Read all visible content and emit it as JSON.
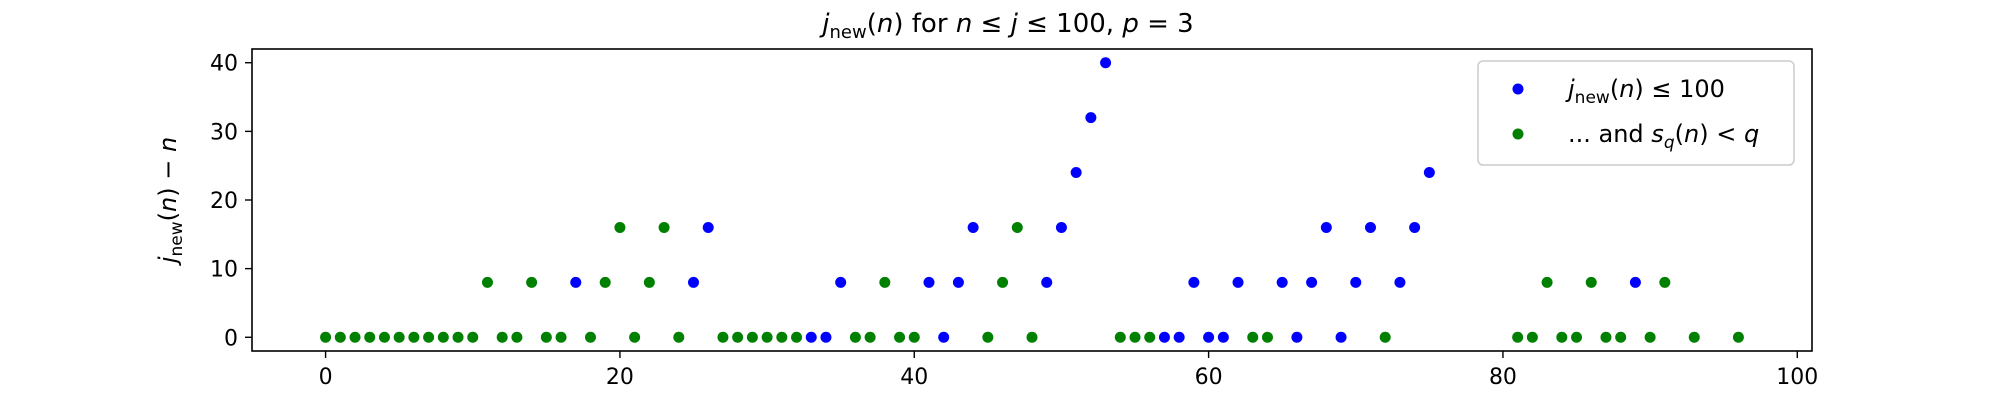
{
  "chart_data": {
    "type": "scatter",
    "title": "j_new(n) for n ≤ j ≤ 100, p = 3",
    "xlabel": "",
    "ylabel": "j_new(n) − n",
    "xlim": [
      -5,
      101
    ],
    "ylim": [
      -2,
      42
    ],
    "xticks": [
      "0",
      "20",
      "40",
      "60",
      "80",
      "100"
    ],
    "yticks": [
      "0",
      "10",
      "20",
      "30",
      "40"
    ],
    "grid": false,
    "legend_position": "top-right",
    "series": [
      {
        "name": "j_new(n) ≤ 100",
        "color": "#0000ff",
        "points": [
          [
            17,
            8
          ],
          [
            25,
            8
          ],
          [
            26,
            16
          ],
          [
            33,
            0
          ],
          [
            34,
            0
          ],
          [
            35,
            8
          ],
          [
            41,
            8
          ],
          [
            42,
            0
          ],
          [
            43,
            8
          ],
          [
            44,
            16
          ],
          [
            49,
            8
          ],
          [
            50,
            16
          ],
          [
            51,
            24
          ],
          [
            52,
            32
          ],
          [
            53,
            40
          ],
          [
            57,
            0
          ],
          [
            58,
            0
          ],
          [
            59,
            8
          ],
          [
            60,
            0
          ],
          [
            61,
            0
          ],
          [
            62,
            8
          ],
          [
            65,
            8
          ],
          [
            66,
            0
          ],
          [
            67,
            8
          ],
          [
            68,
            16
          ],
          [
            69,
            0
          ],
          [
            70,
            8
          ],
          [
            71,
            16
          ],
          [
            73,
            8
          ],
          [
            74,
            16
          ],
          [
            75,
            24
          ],
          [
            89,
            8
          ]
        ]
      },
      {
        "name": "... and s_q(n) < q",
        "color": "#008000",
        "points": [
          [
            0,
            0
          ],
          [
            1,
            0
          ],
          [
            2,
            0
          ],
          [
            3,
            0
          ],
          [
            4,
            0
          ],
          [
            5,
            0
          ],
          [
            6,
            0
          ],
          [
            7,
            0
          ],
          [
            8,
            0
          ],
          [
            9,
            0
          ],
          [
            10,
            0
          ],
          [
            11,
            8
          ],
          [
            12,
            0
          ],
          [
            13,
            0
          ],
          [
            14,
            8
          ],
          [
            15,
            0
          ],
          [
            16,
            0
          ],
          [
            18,
            0
          ],
          [
            19,
            8
          ],
          [
            20,
            16
          ],
          [
            21,
            0
          ],
          [
            22,
            8
          ],
          [
            23,
            16
          ],
          [
            24,
            0
          ],
          [
            27,
            0
          ],
          [
            28,
            0
          ],
          [
            29,
            0
          ],
          [
            30,
            0
          ],
          [
            31,
            0
          ],
          [
            32,
            0
          ],
          [
            36,
            0
          ],
          [
            37,
            0
          ],
          [
            38,
            8
          ],
          [
            39,
            0
          ],
          [
            40,
            0
          ],
          [
            45,
            0
          ],
          [
            46,
            8
          ],
          [
            47,
            16
          ],
          [
            48,
            0
          ],
          [
            54,
            0
          ],
          [
            55,
            0
          ],
          [
            56,
            0
          ],
          [
            63,
            0
          ],
          [
            64,
            0
          ],
          [
            72,
            0
          ],
          [
            81,
            0
          ],
          [
            82,
            0
          ],
          [
            83,
            8
          ],
          [
            84,
            0
          ],
          [
            85,
            0
          ],
          [
            86,
            8
          ],
          [
            87,
            0
          ],
          [
            88,
            0
          ],
          [
            90,
            0
          ],
          [
            91,
            8
          ],
          [
            93,
            0
          ],
          [
            96,
            0
          ]
        ]
      }
    ]
  }
}
